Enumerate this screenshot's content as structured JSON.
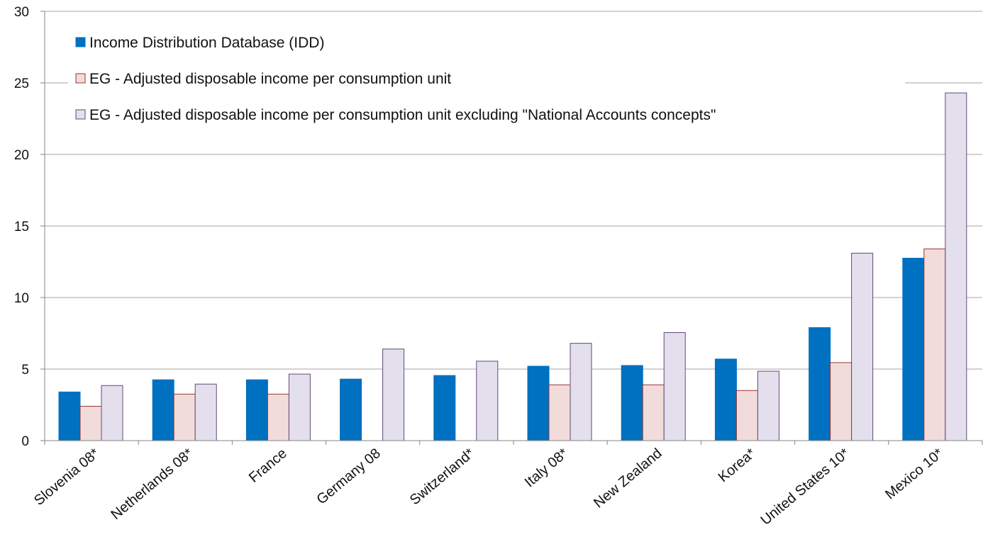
{
  "chart_data": {
    "type": "bar",
    "title": "",
    "xlabel": "",
    "ylabel": "",
    "ylim": [
      0,
      30
    ],
    "yticks": [
      0,
      5,
      10,
      15,
      20,
      25,
      30
    ],
    "grid": true,
    "legend_position": "top-left",
    "categories": [
      "Slovenia 08*",
      "Netherlands 08*",
      "France",
      "Germany 08",
      "Switzerland*",
      "Italy 08*",
      "New Zealand",
      "Korea*",
      "United States 10*",
      "Mexico 10*"
    ],
    "series": [
      {
        "name": "Income Distribution Database (IDD)",
        "fill": "#0070c0",
        "stroke": "#0070c0",
        "values": [
          3.4,
          4.25,
          4.25,
          4.3,
          4.55,
          5.2,
          5.25,
          5.7,
          7.9,
          12.75
        ]
      },
      {
        "name": "EG - Adjusted disposable income per consumption unit",
        "fill": "#f2dcdb",
        "stroke": "#953735",
        "values": [
          2.4,
          3.25,
          3.25,
          null,
          null,
          3.9,
          3.9,
          3.5,
          5.45,
          13.4
        ]
      },
      {
        "name": "EG - Adjusted disposable income per consumption unit excluding \"National Accounts concepts\"",
        "fill": "#e4dfec",
        "stroke": "#60497a",
        "values": [
          3.85,
          3.95,
          4.65,
          6.4,
          5.55,
          6.8,
          7.55,
          4.85,
          13.1,
          24.3
        ]
      }
    ]
  }
}
